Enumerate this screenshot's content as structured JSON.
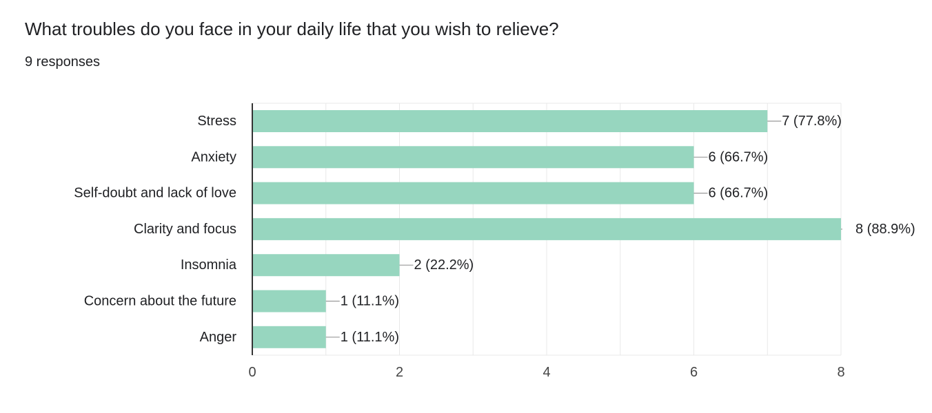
{
  "question": {
    "title": "What troubles do you face in your daily life that you wish to relieve?",
    "responses": "9 responses"
  },
  "colors": {
    "bar": "#97d6bf",
    "grid": "#e8e8e8",
    "axis": "#333333",
    "connector": "#999999"
  },
  "chart_data": {
    "type": "bar",
    "orientation": "horizontal",
    "title": "What troubles do you face in your daily life that you wish to relieve?",
    "subtitle": "9 responses",
    "categories": [
      "Stress",
      "Anxiety",
      "Self-doubt and lack of love",
      "Clarity and focus",
      "Insomnia",
      "Concern about the future",
      "Anger"
    ],
    "values": [
      7,
      6,
      6,
      8,
      2,
      1,
      1
    ],
    "data_labels": [
      "7 (77.8%)",
      "6 (66.7%)",
      "6 (66.7%)",
      "8 (88.9%)",
      "2 (22.2%)",
      "1 (11.1%)",
      "1 (11.1%)"
    ],
    "xlim": [
      0,
      8
    ],
    "xticks": [
      0,
      2,
      4,
      6,
      8
    ],
    "xtick_labels": [
      "0",
      "2",
      "4",
      "6",
      "8"
    ],
    "xlabel": "",
    "ylabel": "",
    "grid": true
  }
}
